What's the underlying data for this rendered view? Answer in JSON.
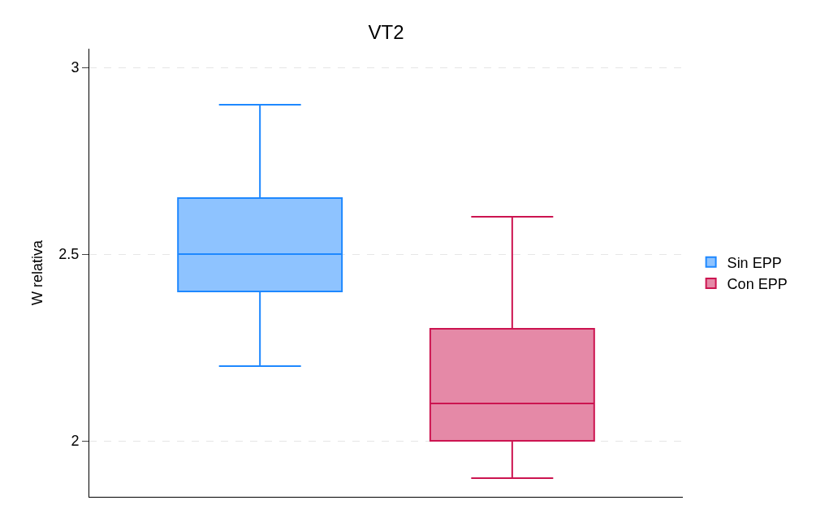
{
  "chart_data": {
    "type": "box",
    "title": "VT2",
    "ylabel": "W relativa",
    "categories": [
      null
    ],
    "series": [
      {
        "name": "Sin EPP",
        "color": "#1e88ff",
        "boxes": [
          {
            "low": 2.2,
            "q1": 2.4,
            "median": 2.5,
            "q3": 2.65,
            "high": 2.9
          }
        ]
      },
      {
        "name": "Con EPP",
        "color": "#cc1450",
        "boxes": [
          {
            "low": 1.9,
            "q1": 2.0,
            "median": 2.1,
            "q3": 2.3,
            "high": 2.6
          }
        ]
      }
    ],
    "ylim": [
      1.85,
      3.05
    ],
    "yticks": [
      2,
      2.5,
      3
    ],
    "grid": "y",
    "legend": "right",
    "tick_labels": "y"
  }
}
